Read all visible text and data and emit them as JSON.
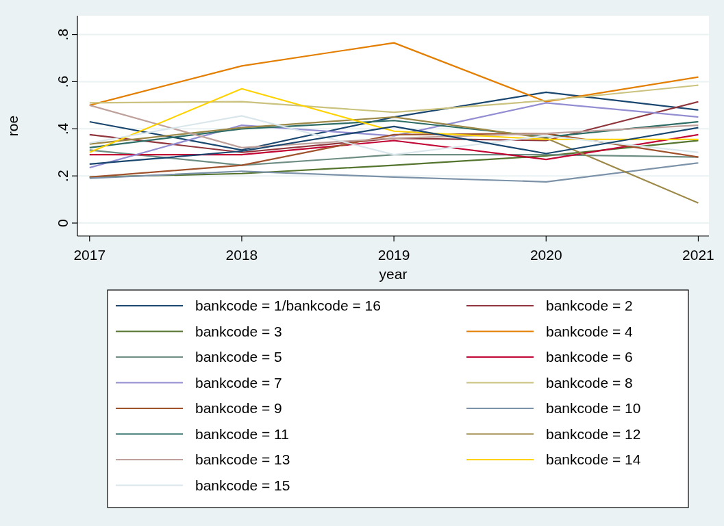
{
  "chart_data": {
    "type": "line",
    "xlabel": "year",
    "ylabel": "roe",
    "x": [
      2017,
      2018,
      2019,
      2020,
      2021
    ],
    "xlim": [
      2016.92,
      2021.07
    ],
    "xticks": [
      2017,
      2018,
      2019,
      2020,
      2021
    ],
    "ylim": [
      -0.055,
      0.88
    ],
    "yticks": [
      {
        "value": 0,
        "label": "0"
      },
      {
        "value": 0.2,
        "label": ".2"
      },
      {
        "value": 0.4,
        "label": ".4"
      },
      {
        "value": 0.6,
        "label": ".6"
      },
      {
        "value": 0.8,
        "label": ".8"
      }
    ],
    "grid": "y",
    "legend": "bottom",
    "line_style": "solid",
    "series": [
      {
        "name": "bankcode = 1/bankcode = 16",
        "color": "#1a476f",
        "values": [
          0.43,
          0.31,
          0.45,
          0.555,
          0.48
        ]
      },
      {
        "name": "bankcode = 2",
        "color": "#90353b",
        "values": [
          0.375,
          0.3,
          0.36,
          0.35,
          0.515
        ]
      },
      {
        "name": "bankcode = 3",
        "color": "#55752f",
        "values": [
          0.195,
          0.21,
          0.245,
          0.285,
          0.35
        ]
      },
      {
        "name": "bankcode = 4",
        "color": "#e37e00",
        "values": [
          0.5,
          0.667,
          0.765,
          0.515,
          0.62
        ]
      },
      {
        "name": "bankcode = 5",
        "color": "#6e8e84",
        "values": [
          0.31,
          0.245,
          0.29,
          0.29,
          0.28
        ]
      },
      {
        "name": "bankcode = 6",
        "color": "#c10534",
        "values": [
          0.29,
          0.29,
          0.35,
          0.27,
          0.375
        ]
      },
      {
        "name": "bankcode = 7",
        "color": "#938dd2",
        "values": [
          0.235,
          0.415,
          0.37,
          0.51,
          0.45
        ]
      },
      {
        "name": "bankcode = 8",
        "color": "#cac27e",
        "values": [
          0.51,
          0.515,
          0.47,
          0.52,
          0.585
        ]
      },
      {
        "name": "bankcode = 9",
        "color": "#a0522d",
        "values": [
          0.195,
          0.245,
          0.375,
          0.38,
          0.28
        ]
      },
      {
        "name": "bankcode = 10",
        "color": "#7b92a8",
        "values": [
          0.19,
          0.22,
          0.195,
          0.175,
          0.255
        ]
      },
      {
        "name": "bankcode = 11",
        "color": "#2d6d66",
        "values": [
          0.32,
          0.4,
          0.435,
          0.365,
          0.43
        ]
      },
      {
        "name": "bankcode = 12",
        "color": "#9c8847",
        "values": [
          0.335,
          0.405,
          0.45,
          0.36,
          0.085
        ]
      },
      {
        "name": "bankcode = 13",
        "color": "#bfa19c",
        "values": [
          0.5,
          0.32,
          0.36,
          0.38,
          0.415
        ]
      },
      {
        "name": "bankcode = 14",
        "color": "#ffd200",
        "values": [
          0.3,
          0.57,
          0.39,
          0.355,
          0.355
        ]
      },
      {
        "name": "bankcode = 15",
        "color": "#d9e6eb",
        "values": [
          0.34,
          0.455,
          0.29,
          0.37,
          0.3
        ]
      },
      {
        "color": "#1a476f",
        "values": [
          0.25,
          0.305,
          0.41,
          0.295,
          0.405
        ]
      }
    ]
  }
}
